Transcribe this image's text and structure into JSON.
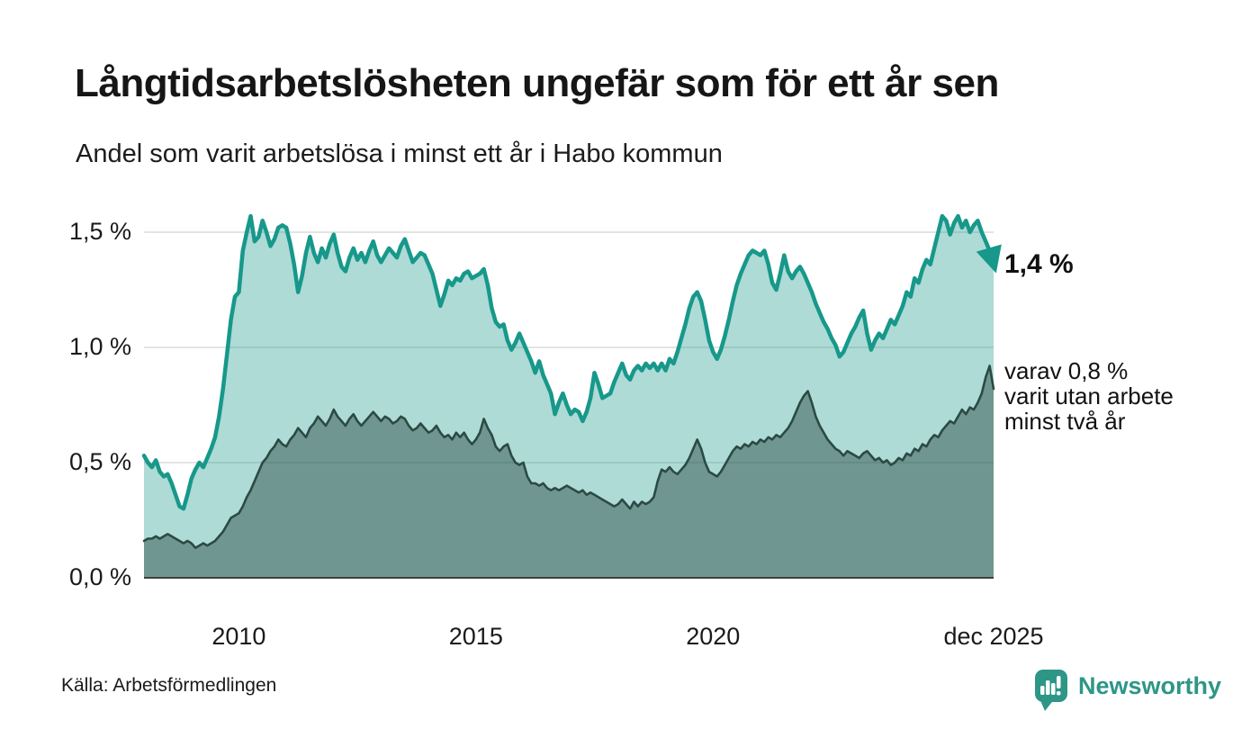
{
  "header": {
    "title": "Långtidsarbetslösheten ungefär som för ett år sen",
    "subtitle": "Andel som varit arbetslösa i minst ett år i Habo kommun"
  },
  "footer": {
    "source": "Källa: Arbetsförmedlingen",
    "brand": "Newsworthy"
  },
  "colors": {
    "series1_line": "#17988a",
    "series1_fill": "rgba(23,152,138,0.35)",
    "series2_line": "#2c4a44",
    "series2_fill": "rgba(35,66,60,0.45)",
    "gridline": "#e4e4e4",
    "axis_line": "#3f3f3f",
    "brand_teal": "#2d9687"
  },
  "chart_data": {
    "type": "area",
    "title": "Långtidsarbetslösheten ungefär som för ett år sen",
    "subtitle": "Andel som varit arbetslösa i minst ett år i Habo kommun",
    "unit": "%",
    "frequency": "monthly",
    "x_start_month": "2008-01",
    "x_end_month": "2025-12",
    "grid": "horizontal",
    "legend_position": "none",
    "y_axis": {
      "range": [
        0,
        1.65
      ],
      "ticks": [
        {
          "value": 0.0,
          "label": "0,0 %"
        },
        {
          "value": 0.5,
          "label": "0,5 %"
        },
        {
          "value": 1.0,
          "label": "1,0 %"
        },
        {
          "value": 1.5,
          "label": "1,5 %"
        }
      ]
    },
    "x_axis": {
      "ticks": [
        {
          "month": "2010-01",
          "label": "2010"
        },
        {
          "month": "2015-01",
          "label": "2015"
        },
        {
          "month": "2020-01",
          "label": "2020"
        },
        {
          "month": "2025-12",
          "label": "dec 2025"
        }
      ]
    },
    "annotations": {
      "series1_end": {
        "label": "1,4 %"
      },
      "series2_end": {
        "lines": [
          "varav 0,8 %",
          "varit utan arbete",
          "minst två år"
        ]
      }
    },
    "series": [
      {
        "name": "Andel arbetslösa minst ett år",
        "end_value": 1.4,
        "values": [
          0.53,
          0.5,
          0.48,
          0.51,
          0.46,
          0.44,
          0.45,
          0.41,
          0.36,
          0.31,
          0.3,
          0.36,
          0.43,
          0.47,
          0.5,
          0.48,
          0.52,
          0.56,
          0.61,
          0.7,
          0.82,
          0.97,
          1.12,
          1.22,
          1.24,
          1.42,
          1.5,
          1.57,
          1.46,
          1.48,
          1.55,
          1.5,
          1.44,
          1.47,
          1.52,
          1.53,
          1.52,
          1.45,
          1.36,
          1.24,
          1.31,
          1.41,
          1.48,
          1.41,
          1.37,
          1.43,
          1.39,
          1.45,
          1.49,
          1.41,
          1.35,
          1.33,
          1.39,
          1.43,
          1.38,
          1.41,
          1.37,
          1.42,
          1.46,
          1.4,
          1.37,
          1.4,
          1.43,
          1.41,
          1.39,
          1.44,
          1.47,
          1.42,
          1.37,
          1.39,
          1.41,
          1.4,
          1.36,
          1.32,
          1.25,
          1.18,
          1.23,
          1.29,
          1.27,
          1.3,
          1.29,
          1.32,
          1.33,
          1.3,
          1.31,
          1.32,
          1.34,
          1.27,
          1.17,
          1.11,
          1.09,
          1.1,
          1.03,
          0.99,
          1.02,
          1.06,
          1.02,
          0.98,
          0.94,
          0.89,
          0.94,
          0.88,
          0.84,
          0.8,
          0.71,
          0.76,
          0.8,
          0.75,
          0.71,
          0.73,
          0.72,
          0.68,
          0.72,
          0.78,
          0.89,
          0.84,
          0.78,
          0.79,
          0.8,
          0.85,
          0.89,
          0.93,
          0.88,
          0.86,
          0.9,
          0.92,
          0.9,
          0.93,
          0.91,
          0.93,
          0.9,
          0.93,
          0.9,
          0.95,
          0.93,
          0.98,
          1.04,
          1.1,
          1.17,
          1.22,
          1.24,
          1.2,
          1.12,
          1.03,
          0.98,
          0.95,
          0.99,
          1.05,
          1.12,
          1.2,
          1.27,
          1.32,
          1.36,
          1.4,
          1.42,
          1.41,
          1.4,
          1.42,
          1.36,
          1.28,
          1.25,
          1.32,
          1.4,
          1.33,
          1.3,
          1.33,
          1.35,
          1.32,
          1.28,
          1.24,
          1.19,
          1.15,
          1.11,
          1.08,
          1.04,
          1.01,
          0.96,
          0.98,
          1.02,
          1.06,
          1.09,
          1.13,
          1.16,
          1.06,
          0.99,
          1.03,
          1.06,
          1.04,
          1.08,
          1.12,
          1.1,
          1.14,
          1.18,
          1.24,
          1.22,
          1.3,
          1.28,
          1.34,
          1.38,
          1.36,
          1.43,
          1.5,
          1.57,
          1.55,
          1.49,
          1.54,
          1.57,
          1.52,
          1.55,
          1.5,
          1.53,
          1.55,
          1.5,
          1.46,
          1.42,
          1.36
        ]
      },
      {
        "name": "varav utan arbete minst två år",
        "end_value": 0.8,
        "values": [
          0.16,
          0.17,
          0.17,
          0.18,
          0.17,
          0.18,
          0.19,
          0.18,
          0.17,
          0.16,
          0.15,
          0.16,
          0.15,
          0.13,
          0.14,
          0.15,
          0.14,
          0.15,
          0.16,
          0.18,
          0.2,
          0.23,
          0.26,
          0.27,
          0.28,
          0.31,
          0.35,
          0.38,
          0.42,
          0.46,
          0.5,
          0.52,
          0.55,
          0.57,
          0.6,
          0.58,
          0.57,
          0.6,
          0.62,
          0.65,
          0.63,
          0.61,
          0.65,
          0.67,
          0.7,
          0.68,
          0.66,
          0.69,
          0.73,
          0.7,
          0.68,
          0.66,
          0.69,
          0.71,
          0.68,
          0.66,
          0.68,
          0.7,
          0.72,
          0.7,
          0.68,
          0.7,
          0.69,
          0.67,
          0.68,
          0.7,
          0.69,
          0.66,
          0.64,
          0.65,
          0.67,
          0.65,
          0.63,
          0.64,
          0.66,
          0.63,
          0.61,
          0.62,
          0.6,
          0.63,
          0.61,
          0.63,
          0.6,
          0.58,
          0.6,
          0.63,
          0.69,
          0.65,
          0.62,
          0.57,
          0.55,
          0.57,
          0.58,
          0.53,
          0.5,
          0.49,
          0.5,
          0.44,
          0.41,
          0.41,
          0.4,
          0.41,
          0.39,
          0.38,
          0.39,
          0.38,
          0.39,
          0.4,
          0.39,
          0.38,
          0.37,
          0.38,
          0.36,
          0.37,
          0.36,
          0.35,
          0.34,
          0.33,
          0.32,
          0.31,
          0.32,
          0.34,
          0.32,
          0.3,
          0.33,
          0.31,
          0.33,
          0.32,
          0.33,
          0.35,
          0.42,
          0.47,
          0.46,
          0.48,
          0.46,
          0.45,
          0.47,
          0.49,
          0.52,
          0.56,
          0.6,
          0.56,
          0.5,
          0.46,
          0.45,
          0.44,
          0.46,
          0.49,
          0.52,
          0.55,
          0.57,
          0.56,
          0.58,
          0.57,
          0.59,
          0.58,
          0.6,
          0.59,
          0.61,
          0.6,
          0.62,
          0.61,
          0.63,
          0.65,
          0.68,
          0.72,
          0.76,
          0.79,
          0.81,
          0.76,
          0.7,
          0.66,
          0.63,
          0.6,
          0.58,
          0.56,
          0.55,
          0.53,
          0.55,
          0.54,
          0.53,
          0.52,
          0.54,
          0.55,
          0.53,
          0.51,
          0.52,
          0.5,
          0.51,
          0.49,
          0.5,
          0.52,
          0.51,
          0.54,
          0.53,
          0.56,
          0.55,
          0.58,
          0.57,
          0.6,
          0.62,
          0.61,
          0.64,
          0.66,
          0.68,
          0.67,
          0.7,
          0.73,
          0.71,
          0.74,
          0.73,
          0.76,
          0.8,
          0.87,
          0.92,
          0.82
        ]
      }
    ]
  }
}
